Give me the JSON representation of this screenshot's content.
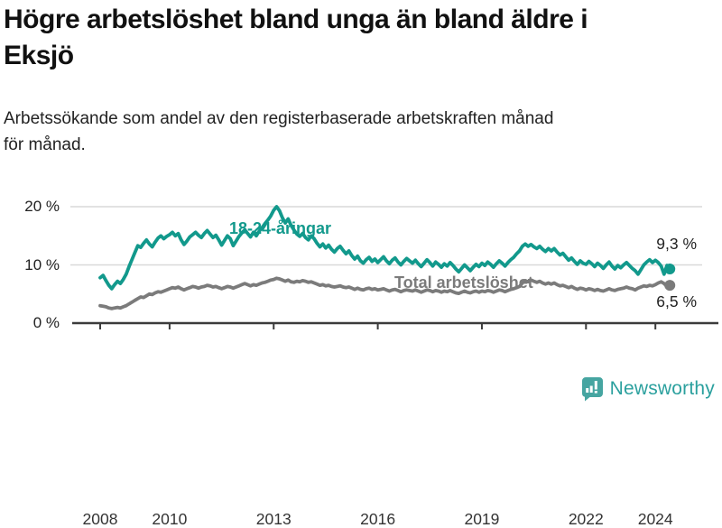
{
  "header": {
    "title_lines": [
      "Högre arbetslöshet bland unga än bland äldre i",
      "Eksjö"
    ],
    "subtitle_lines": [
      "Arbetssökande som andel av den registerbaserade arbetskraften månad",
      "för månad."
    ]
  },
  "chart_data": {
    "type": "line",
    "frequency": "monthly",
    "x_start": "2008-01",
    "x_end": "2024-06",
    "unit": "%",
    "ylim": [
      0,
      22
    ],
    "grid": "horizontal",
    "legend": "inline-labels",
    "y_ticks": [
      {
        "label": "20 %",
        "value": 20
      },
      {
        "label": "10 %",
        "value": 10
      },
      {
        "label": "0 %",
        "value": 0
      }
    ],
    "x_ticks": [
      {
        "label": "2008",
        "year": 2008
      },
      {
        "label": "2010",
        "year": 2010
      },
      {
        "label": "2013",
        "year": 2013
      },
      {
        "label": "2016",
        "year": 2016
      },
      {
        "label": "2019",
        "year": 2019
      },
      {
        "label": "2022",
        "year": 2022
      },
      {
        "label": "2024",
        "year": 2024
      }
    ],
    "series": [
      {
        "name": "18-24-åringar",
        "color": "#12998c",
        "end_label": "9,3 %",
        "end_value": 9.3,
        "values": [
          7.8,
          8.2,
          7.3,
          6.5,
          5.9,
          6.6,
          7.2,
          6.8,
          7.5,
          8.4,
          9.7,
          10.9,
          12.1,
          13.3,
          13.0,
          13.7,
          14.3,
          13.6,
          13.1,
          13.9,
          14.6,
          15.0,
          14.5,
          14.9,
          15.2,
          15.6,
          15.0,
          15.4,
          14.3,
          13.5,
          14.1,
          14.8,
          15.2,
          15.6,
          15.1,
          14.7,
          15.4,
          15.9,
          15.3,
          14.7,
          15.1,
          14.3,
          13.4,
          14.2,
          15.0,
          14.5,
          13.3,
          14.1,
          14.9,
          15.5,
          16.0,
          15.4,
          14.8,
          15.6,
          15.0,
          15.8,
          16.4,
          17.1,
          17.7,
          18.4,
          19.4,
          20.0,
          19.3,
          18.1,
          17.2,
          17.9,
          16.8,
          16.0,
          15.3,
          14.9,
          15.4,
          14.7,
          14.3,
          15.0,
          14.5,
          13.7,
          13.1,
          13.6,
          12.9,
          13.4,
          12.7,
          12.2,
          12.8,
          13.2,
          12.5,
          11.9,
          12.4,
          11.6,
          11.0,
          11.5,
          10.7,
          10.3,
          10.9,
          11.3,
          10.6,
          11.0,
          10.4,
          10.9,
          11.4,
          10.7,
          10.2,
          10.8,
          11.2,
          10.5,
          10.0,
          10.6,
          11.1,
          10.7,
          10.3,
          10.8,
          10.2,
          9.7,
          10.3,
          10.9,
          10.4,
          9.8,
          10.5,
          10.1,
          9.6,
          10.2,
          9.8,
          10.4,
          9.9,
          9.3,
          8.8,
          9.4,
          10.0,
          9.5,
          9.0,
          9.6,
          10.1,
          9.7,
          10.3,
          9.9,
          10.5,
          10.1,
          9.6,
          10.2,
          10.7,
          10.3,
          9.8,
          10.4,
          10.9,
          11.3,
          11.9,
          12.4,
          13.2,
          13.6,
          13.2,
          13.5,
          13.1,
          12.8,
          13.2,
          12.7,
          12.3,
          12.8,
          12.4,
          12.8,
          12.2,
          11.7,
          12.0,
          11.4,
          10.8,
          11.2,
          10.6,
          10.1,
          10.7,
          10.3,
          10.1,
          10.6,
          10.2,
          9.7,
          10.3,
          9.9,
          9.4,
          10.0,
          10.5,
          9.8,
          9.3,
          9.9,
          9.5,
          10.0,
          10.4,
          9.9,
          9.4,
          9.0,
          8.4,
          9.2,
          10.0,
          10.5,
          10.9,
          10.4,
          10.8,
          10.4,
          9.8,
          8.4,
          9.9,
          9.3
        ]
      },
      {
        "name": "Total arbetslöshet",
        "color": "#7b7b7b",
        "end_label": "6,5 %",
        "end_value": 6.5,
        "values": [
          3.0,
          2.9,
          2.8,
          2.6,
          2.5,
          2.6,
          2.7,
          2.6,
          2.8,
          3.0,
          3.3,
          3.6,
          3.9,
          4.2,
          4.5,
          4.4,
          4.7,
          5.0,
          4.9,
          5.2,
          5.4,
          5.3,
          5.5,
          5.7,
          5.9,
          6.1,
          6.0,
          6.2,
          5.9,
          5.7,
          5.9,
          6.1,
          6.3,
          6.2,
          6.0,
          6.2,
          6.3,
          6.5,
          6.4,
          6.2,
          6.3,
          6.1,
          5.9,
          6.1,
          6.3,
          6.2,
          6.0,
          6.2,
          6.4,
          6.6,
          6.8,
          6.6,
          6.4,
          6.6,
          6.5,
          6.7,
          6.9,
          7.0,
          7.2,
          7.4,
          7.5,
          7.7,
          7.6,
          7.4,
          7.2,
          7.4,
          7.1,
          7.0,
          7.2,
          7.1,
          7.3,
          7.2,
          7.0,
          7.1,
          6.9,
          6.7,
          6.5,
          6.6,
          6.4,
          6.5,
          6.3,
          6.2,
          6.3,
          6.4,
          6.2,
          6.1,
          6.2,
          6.0,
          5.8,
          6.0,
          5.8,
          5.7,
          5.9,
          6.0,
          5.8,
          5.9,
          5.7,
          5.8,
          5.9,
          5.7,
          5.5,
          5.7,
          5.8,
          5.6,
          5.4,
          5.6,
          5.7,
          5.6,
          5.5,
          5.7,
          5.5,
          5.3,
          5.5,
          5.7,
          5.6,
          5.4,
          5.6,
          5.5,
          5.3,
          5.5,
          5.4,
          5.6,
          5.4,
          5.2,
          5.1,
          5.3,
          5.5,
          5.3,
          5.2,
          5.4,
          5.5,
          5.3,
          5.5,
          5.4,
          5.6,
          5.5,
          5.3,
          5.5,
          5.7,
          5.6,
          5.4,
          5.6,
          5.8,
          5.9,
          6.1,
          6.3,
          6.9,
          7.3,
          7.1,
          7.4,
          7.2,
          7.0,
          7.2,
          6.9,
          6.7,
          6.9,
          6.7,
          6.9,
          6.6,
          6.4,
          6.5,
          6.3,
          6.1,
          6.3,
          6.0,
          5.8,
          6.0,
          5.9,
          5.7,
          5.9,
          5.8,
          5.6,
          5.8,
          5.6,
          5.5,
          5.7,
          5.9,
          5.7,
          5.6,
          5.8,
          5.9,
          6.0,
          6.2,
          6.0,
          5.9,
          5.7,
          6.0,
          6.2,
          6.4,
          6.3,
          6.5,
          6.4,
          6.6,
          6.9,
          7.1,
          6.8,
          6.3,
          6.5
        ]
      }
    ]
  },
  "branding": {
    "name": "Newsworthy",
    "icon": "newsworthy-bubble-chart-icon",
    "icon_color": "#46a5a1",
    "text_color": "#2ba09e"
  },
  "colors": {
    "youth_line": "#12998c",
    "total_line": "#7b7b7b",
    "gridline": "#d9d9d9",
    "axis": "#3b3b3b"
  }
}
